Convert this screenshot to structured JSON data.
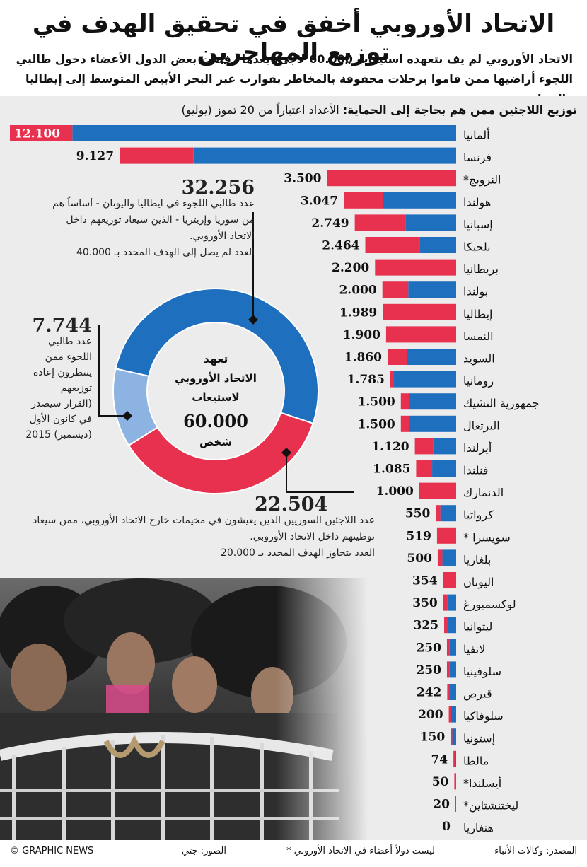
{
  "title": "الاتحاد الأوروبي أخفق في تحقيق الهدف في توزيع المهاجرين",
  "subtitle": "الاتحاد الأوروبي لم يف بتعهده استيعاب 60.000 لاجئ، بعدما رفضت بعض الدول الأعضاء دخول طالبي اللجوء أراضيها ممن قاموا برحلات محفوفة بالمخاطر بقوارب عبر البحر الأبيض المتوسط إلى إيطاليا واليونان",
  "chart_heading": {
    "bold": "توزيع اللاجئين ممن هم بحاجة إلى الحماية:",
    "normal": " الأعداد اعتباراً من 20 تموز (يوليو)"
  },
  "colors": {
    "blue": "#1f6fbf",
    "red": "#e8314f",
    "lightblue": "#8db3e2",
    "panel": "#ececec"
  },
  "chart_data": [
    {
      "type": "bar",
      "title": "توزيع اللاجئين ممن هم بحاجة إلى الحماية",
      "subtitle": "الأعداد اعتباراً من 20 تموز (يوليو)",
      "orientation": "horizontal",
      "categories": [
        "ألمانيا",
        "فرنسا",
        "النرويج*",
        "هولندا",
        "إسبانيا",
        "بلجيكا",
        "بريطانيا",
        "بولندا",
        "إيطاليا",
        "النمسا",
        "السويد",
        "رومانيا",
        "جمهورية التشيك",
        "البرتغال",
        "أيرلندا",
        "فنلندا",
        "الدنمارك",
        "كرواتيا",
        "سويسرا *",
        "بلغاريا",
        "اليونان",
        "لوكسمبورغ",
        "ليتوانيا",
        "لاتفيا",
        "سلوفينيا",
        "قبرص",
        "سلوفاكيا",
        "إستونيا",
        "مالطا",
        "أيسلندا*",
        "ليختنشتاين*",
        "هنغاريا"
      ],
      "value_labels": [
        "12.100",
        "9.127",
        "3.500",
        "3.047",
        "2.749",
        "2.464",
        "2.200",
        "2.000",
        "1.989",
        "1.900",
        "1.860",
        "1.785",
        "1.500",
        "1.500",
        "1.120",
        "1.085",
        "1.000",
        "550",
        "519",
        "500",
        "354",
        "350",
        "325",
        "250",
        "250",
        "242",
        "200",
        "150",
        "74",
        "50",
        "20",
        "0"
      ],
      "values": [
        12100,
        9127,
        3500,
        3047,
        2749,
        2464,
        2200,
        2000,
        1989,
        1900,
        1860,
        1785,
        1500,
        1500,
        1120,
        1085,
        1000,
        550,
        519,
        500,
        354,
        350,
        325,
        250,
        250,
        242,
        200,
        150,
        74,
        50,
        20,
        0
      ],
      "red_share": [
        0.14,
        0.22,
        1.0,
        0.35,
        0.5,
        0.6,
        1.0,
        0.35,
        1.0,
        1.0,
        0.28,
        0.05,
        0.15,
        0.15,
        0.45,
        0.4,
        1.0,
        0.22,
        1.0,
        0.25,
        1.0,
        0.3,
        0.3,
        0.3,
        0.3,
        0.25,
        0.3,
        0.3,
        0.5,
        1.0,
        1.0,
        0.0
      ],
      "series": [
        {
          "name": "اللاجئون السوريون من مخيمات خارج الاتحاد الأوروبي",
          "color": "red"
        },
        {
          "name": "طالبو اللجوء في إيطاليا واليونان",
          "color": "blue"
        }
      ]
    },
    {
      "type": "pie",
      "title": "تعهد الاتحاد الأوروبي لاستيعاب 60.000 شخص",
      "labels": [
        "طالبو اللجوء في إيطاليا واليونان",
        "اللاجئون السوريون من المخيمات",
        "طالبو اللجوء ممن ينتظرون إعادة توزيعهم"
      ],
      "values": [
        32256,
        22504,
        7744
      ],
      "colors": [
        "blue",
        "red",
        "lightblue"
      ]
    }
  ],
  "donut_center": {
    "line1": "تعهد",
    "line2": "الاتحاد الأوروبي",
    "line3": "لاستيعاب",
    "number": "60.000",
    "unit": "شخص"
  },
  "callouts": {
    "blue": {
      "number": "32.256",
      "text": "عدد طالبي اللجوء في ايطاليا واليونان - أساساً هم من سوريا وإريتريا - الذين سيعاد توزيعهم داخل الاتحاد الأوروبي.",
      "note": "العدد لم يصل إلى الهدف المحدد بـ 40.000"
    },
    "lightblue": {
      "number": "7.744",
      "lines": [
        "عدد طالبي",
        "اللجوء ممن",
        "ينتظرون إعادة",
        "توزيعهم",
        "(القرار سيصدر",
        "في كانون الأول",
        "(ديسمبر) 2015"
      ]
    },
    "red": {
      "number": "22.504",
      "text": "عدد اللاجئين السوريين الذين يعيشون في مخيمات خارج الاتحاد الأوروبي، ممن سيعاد توطينهم داخل الاتحاد الأوروبي.",
      "note": "العدد يتجاوز الهدف المحدد بـ 20.000"
    }
  },
  "footer": {
    "source": "المصدر: وكالات الأنباء",
    "note": "* ليست دولاً أعضاء في الاتحاد الأوروبي",
    "photos": "الصور: جتي",
    "brand": "© GRAPHIC NEWS"
  }
}
